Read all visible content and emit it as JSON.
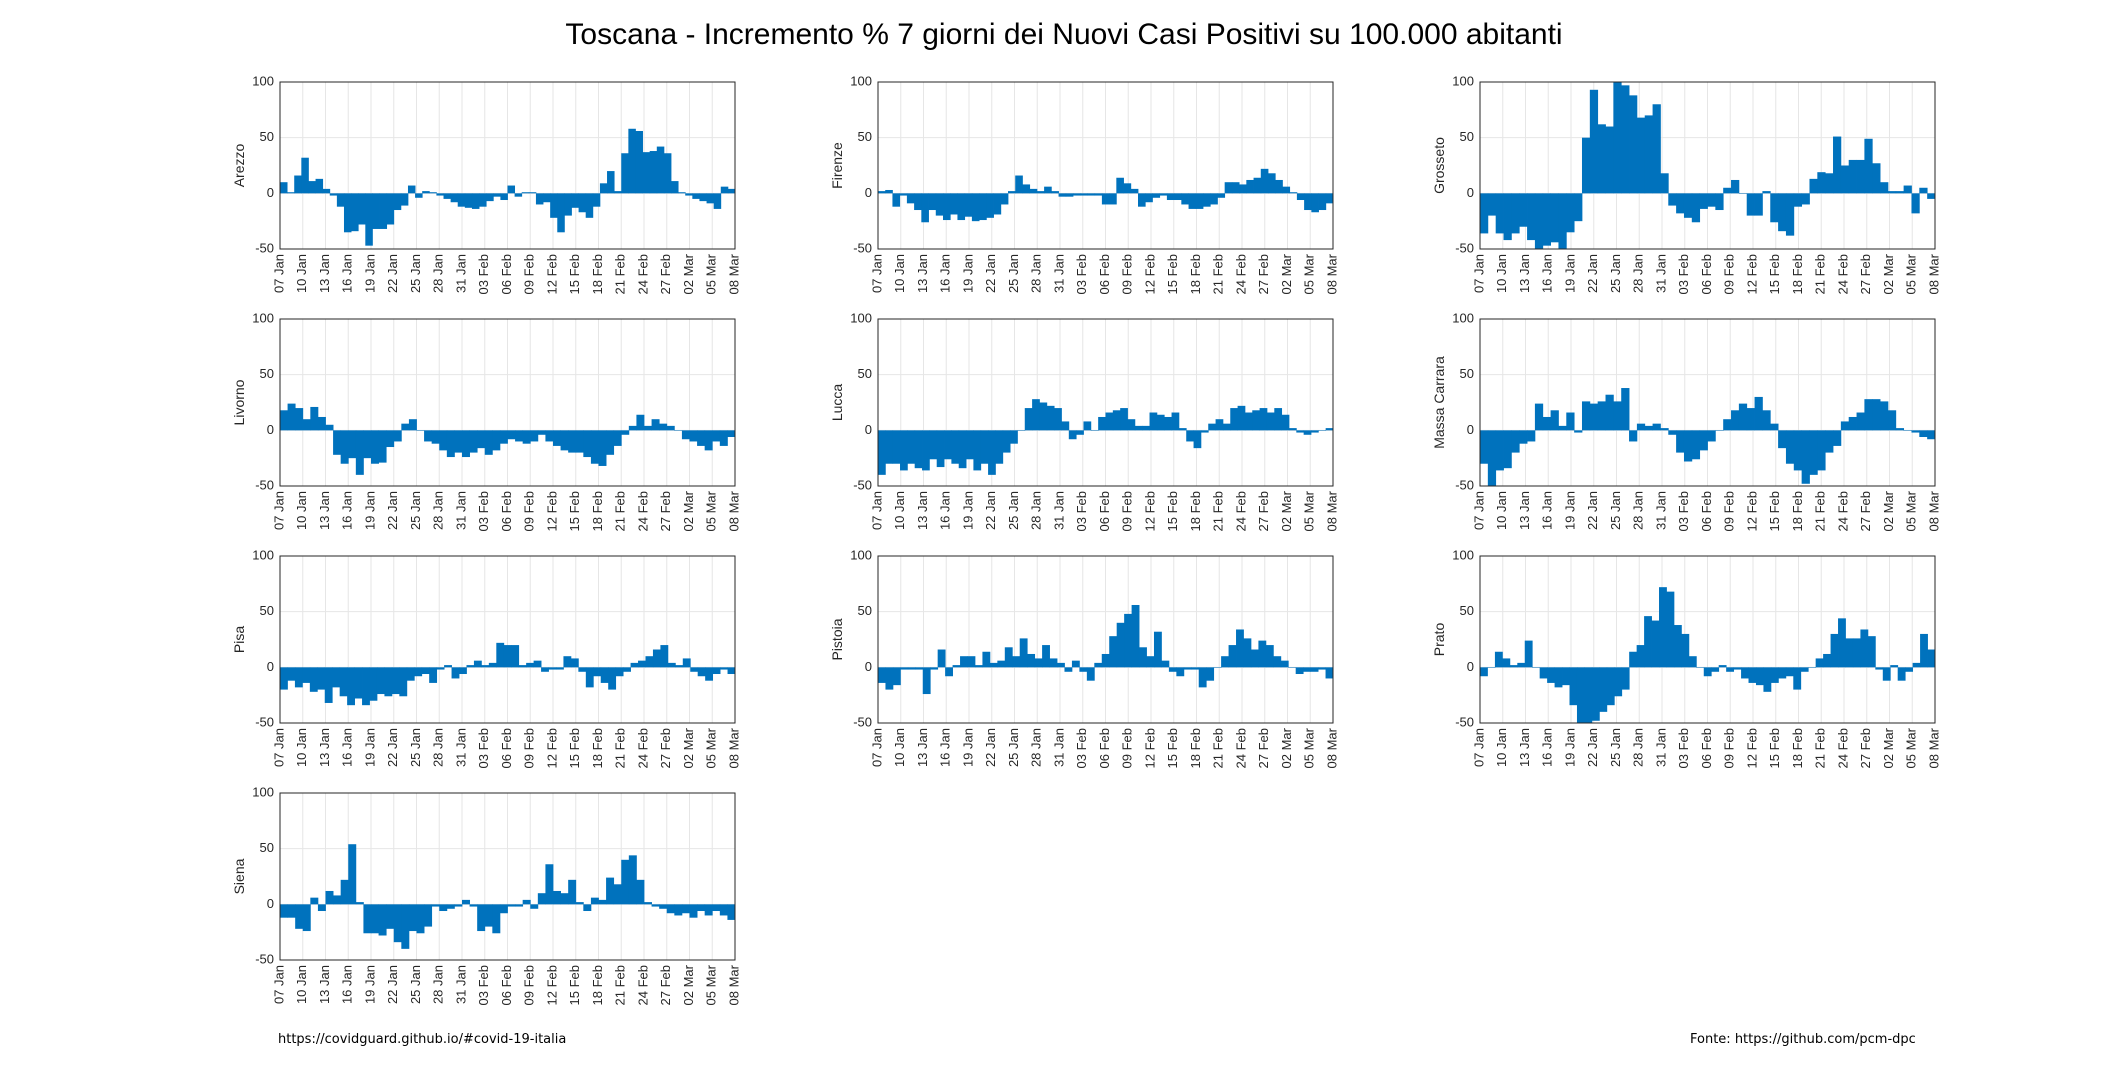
{
  "title": "Toscana - Incremento % 7 giorni dei Nuovi Casi Positivi su 100.000 abitanti",
  "footer": {
    "left": "https://covidguard.github.io/#covid-19-italia",
    "right": "Fonte: https://github.com/pcm-dpc"
  },
  "colors": {
    "bar": "#0072BD",
    "grid": "#e6e6e6",
    "axis": "#262626"
  },
  "chart_data": [
    {
      "type": "bar",
      "ylabel": "Arezzo",
      "ylim": [
        -50,
        100
      ],
      "yticks": [
        -50,
        0,
        50,
        100
      ],
      "xticks": [
        "07 Jan",
        "10 Jan",
        "13 Jan",
        "16 Jan",
        "19 Jan",
        "22 Jan",
        "25 Jan",
        "28 Jan",
        "31 Jan",
        "03 Feb",
        "06 Feb",
        "09 Feb",
        "12 Feb",
        "15 Feb",
        "18 Feb",
        "21 Feb",
        "24 Feb",
        "27 Feb",
        "02 Mar",
        "05 Mar",
        "08 Mar"
      ],
      "values": [
        10,
        1,
        16,
        32,
        11,
        13,
        4,
        -2,
        -12,
        -35,
        -34,
        -28,
        -47,
        -32,
        -32,
        -28,
        -15,
        -11,
        7,
        -4,
        2,
        1,
        -2,
        -5,
        -8,
        -12,
        -13,
        -14,
        -12,
        -7,
        -3,
        -6,
        7,
        -3,
        1,
        1,
        -10,
        -8,
        -22,
        -35,
        -20,
        -13,
        -17,
        -22,
        -12,
        9,
        20,
        2,
        36,
        58,
        56,
        37,
        38,
        42,
        36,
        11,
        1,
        -2,
        -5,
        -7,
        -9,
        -14,
        6,
        4
      ]
    },
    {
      "type": "bar",
      "ylabel": "Firenze",
      "ylim": [
        -50,
        100
      ],
      "yticks": [
        -50,
        0,
        50,
        100
      ],
      "xticks": [
        "07 Jan",
        "10 Jan",
        "13 Jan",
        "16 Jan",
        "19 Jan",
        "22 Jan",
        "25 Jan",
        "28 Jan",
        "31 Jan",
        "03 Feb",
        "06 Feb",
        "09 Feb",
        "12 Feb",
        "15 Feb",
        "18 Feb",
        "21 Feb",
        "24 Feb",
        "27 Feb",
        "02 Mar",
        "05 Mar",
        "08 Mar"
      ],
      "values": [
        2,
        3,
        -12,
        -2,
        -9,
        -15,
        -26,
        -15,
        -20,
        -24,
        -19,
        -24,
        -21,
        -25,
        -24,
        -22,
        -19,
        -10,
        2,
        16,
        8,
        4,
        2,
        6,
        2,
        -3,
        -3,
        -2,
        -2,
        -2,
        -2,
        -10,
        -10,
        14,
        9,
        4,
        -12,
        -8,
        -4,
        -2,
        -6,
        -6,
        -10,
        -14,
        -14,
        -12,
        -10,
        -4,
        10,
        10,
        8,
        12,
        14,
        22,
        18,
        12,
        6,
        1,
        -6,
        -15,
        -17,
        -15,
        -9
      ]
    },
    {
      "type": "bar",
      "ylabel": "Grosseto",
      "ylim": [
        -50,
        100
      ],
      "yticks": [
        -50,
        0,
        50,
        100
      ],
      "xticks": [
        "07 Jan",
        "10 Jan",
        "13 Jan",
        "16 Jan",
        "19 Jan",
        "22 Jan",
        "25 Jan",
        "28 Jan",
        "31 Jan",
        "03 Feb",
        "06 Feb",
        "09 Feb",
        "12 Feb",
        "15 Feb",
        "18 Feb",
        "21 Feb",
        "24 Feb",
        "27 Feb",
        "02 Mar",
        "05 Mar",
        "08 Mar"
      ],
      "values": [
        -36,
        -20,
        -36,
        -42,
        -36,
        -30,
        -42,
        -52,
        -47,
        -44,
        -52,
        -35,
        -25,
        50,
        93,
        62,
        60,
        100,
        97,
        88,
        68,
        70,
        80,
        18,
        -11,
        -18,
        -22,
        -26,
        -14,
        -12,
        -15,
        5,
        12,
        0,
        -20,
        -20,
        2,
        -26,
        -34,
        -38,
        -12,
        -10,
        13,
        19,
        18,
        51,
        25,
        30,
        30,
        49,
        27,
        10,
        2,
        2,
        7,
        -18,
        5,
        -5
      ]
    },
    {
      "type": "bar",
      "ylabel": "Livorno",
      "ylim": [
        -50,
        100
      ],
      "yticks": [
        -50,
        0,
        50,
        100
      ],
      "xticks": [
        "07 Jan",
        "10 Jan",
        "13 Jan",
        "16 Jan",
        "19 Jan",
        "22 Jan",
        "25 Jan",
        "28 Jan",
        "31 Jan",
        "03 Feb",
        "06 Feb",
        "09 Feb",
        "12 Feb",
        "15 Feb",
        "18 Feb",
        "21 Feb",
        "24 Feb",
        "27 Feb",
        "02 Mar",
        "05 Mar",
        "08 Mar"
      ],
      "values": [
        18,
        24,
        20,
        10,
        21,
        12,
        5,
        -22,
        -30,
        -25,
        -40,
        -25,
        -30,
        -29,
        -15,
        -10,
        6,
        10,
        0,
        -10,
        -12,
        -18,
        -24,
        -20,
        -24,
        -20,
        -16,
        -22,
        -18,
        -12,
        -8,
        -10,
        -12,
        -10,
        -4,
        -10,
        -14,
        -18,
        -20,
        -20,
        -24,
        -30,
        -32,
        -22,
        -14,
        -4,
        4,
        14,
        4,
        10,
        6,
        4,
        0,
        -8,
        -10,
        -14,
        -18,
        -10,
        -14,
        -6
      ]
    },
    {
      "type": "bar",
      "ylabel": "Lucca",
      "ylim": [
        -50,
        100
      ],
      "yticks": [
        -50,
        0,
        50,
        100
      ],
      "xticks": [
        "07 Jan",
        "10 Jan",
        "13 Jan",
        "16 Jan",
        "19 Jan",
        "22 Jan",
        "25 Jan",
        "28 Jan",
        "31 Jan",
        "03 Feb",
        "06 Feb",
        "09 Feb",
        "12 Feb",
        "15 Feb",
        "18 Feb",
        "21 Feb",
        "24 Feb",
        "27 Feb",
        "02 Mar",
        "05 Mar",
        "08 Mar"
      ],
      "values": [
        -40,
        -30,
        -30,
        -36,
        -30,
        -34,
        -36,
        -26,
        -33,
        -26,
        -30,
        -34,
        -26,
        -36,
        -30,
        -40,
        -30,
        -20,
        -12,
        0,
        20,
        28,
        25,
        22,
        20,
        8,
        -8,
        -4,
        8,
        0,
        12,
        16,
        18,
        20,
        10,
        4,
        4,
        16,
        14,
        12,
        16,
        2,
        -10,
        -16,
        -2,
        6,
        10,
        6,
        20,
        22,
        16,
        18,
        20,
        16,
        20,
        14,
        2,
        -2,
        -4,
        -2,
        0,
        2
      ]
    },
    {
      "type": "bar",
      "ylabel": "Massa Carrara",
      "ylim": [
        -50,
        100
      ],
      "yticks": [
        -50,
        0,
        50,
        100
      ],
      "xticks": [
        "07 Jan",
        "10 Jan",
        "13 Jan",
        "16 Jan",
        "19 Jan",
        "22 Jan",
        "25 Jan",
        "28 Jan",
        "31 Jan",
        "03 Feb",
        "06 Feb",
        "09 Feb",
        "12 Feb",
        "15 Feb",
        "18 Feb",
        "21 Feb",
        "24 Feb",
        "27 Feb",
        "02 Mar",
        "05 Mar",
        "08 Mar"
      ],
      "values": [
        -30,
        -50,
        -36,
        -34,
        -20,
        -12,
        -10,
        24,
        12,
        18,
        4,
        16,
        -2,
        26,
        24,
        26,
        32,
        26,
        38,
        -10,
        6,
        4,
        6,
        2,
        -4,
        -20,
        -28,
        -26,
        -18,
        -10,
        0,
        10,
        18,
        24,
        20,
        30,
        18,
        6,
        -16,
        -30,
        -36,
        -48,
        -40,
        -36,
        -20,
        -14,
        8,
        12,
        16,
        28,
        28,
        26,
        18,
        2,
        0,
        -2,
        -6,
        -8
      ]
    },
    {
      "type": "bar",
      "ylabel": "Pisa",
      "ylim": [
        -50,
        100
      ],
      "yticks": [
        -50,
        0,
        50,
        100
      ],
      "xticks": [
        "07 Jan",
        "10 Jan",
        "13 Jan",
        "16 Jan",
        "19 Jan",
        "22 Jan",
        "25 Jan",
        "28 Jan",
        "31 Jan",
        "03 Feb",
        "06 Feb",
        "09 Feb",
        "12 Feb",
        "15 Feb",
        "18 Feb",
        "21 Feb",
        "24 Feb",
        "27 Feb",
        "02 Mar",
        "05 Mar",
        "08 Mar"
      ],
      "values": [
        -20,
        -12,
        -18,
        -14,
        -22,
        -20,
        -32,
        -18,
        -26,
        -34,
        -28,
        -34,
        -30,
        -24,
        -26,
        -24,
        -26,
        -12,
        -8,
        -6,
        -14,
        -2,
        2,
        -10,
        -6,
        2,
        6,
        2,
        4,
        22,
        20,
        20,
        2,
        4,
        6,
        -4,
        -2,
        -2,
        10,
        8,
        -4,
        -18,
        -8,
        -14,
        -20,
        -8,
        -4,
        4,
        6,
        10,
        16,
        20,
        4,
        2,
        8,
        -4,
        -8,
        -12,
        -6,
        -2,
        -6
      ]
    },
    {
      "type": "bar",
      "ylabel": "Pistoia",
      "ylim": [
        -50,
        100
      ],
      "yticks": [
        -50,
        0,
        50,
        100
      ],
      "xticks": [
        "07 Jan",
        "10 Jan",
        "13 Jan",
        "16 Jan",
        "19 Jan",
        "22 Jan",
        "25 Jan",
        "28 Jan",
        "31 Jan",
        "03 Feb",
        "06 Feb",
        "09 Feb",
        "12 Feb",
        "15 Feb",
        "18 Feb",
        "21 Feb",
        "24 Feb",
        "27 Feb",
        "02 Mar",
        "05 Mar",
        "08 Mar"
      ],
      "values": [
        -14,
        -20,
        -16,
        -2,
        -2,
        -2,
        -24,
        -2,
        16,
        -8,
        2,
        10,
        10,
        2,
        14,
        4,
        6,
        18,
        10,
        26,
        12,
        8,
        20,
        8,
        4,
        -4,
        6,
        -4,
        -12,
        4,
        12,
        28,
        40,
        48,
        56,
        18,
        10,
        32,
        6,
        -4,
        -8,
        -2,
        -2,
        -18,
        -12,
        0,
        10,
        20,
        34,
        26,
        16,
        24,
        20,
        10,
        6,
        0,
        -6,
        -4,
        -4,
        -2,
        -10
      ]
    },
    {
      "type": "bar",
      "ylabel": "Prato",
      "ylim": [
        -50,
        100
      ],
      "yticks": [
        -50,
        0,
        50,
        100
      ],
      "xticks": [
        "07 Jan",
        "10 Jan",
        "13 Jan",
        "16 Jan",
        "19 Jan",
        "22 Jan",
        "25 Jan",
        "28 Jan",
        "31 Jan",
        "03 Feb",
        "06 Feb",
        "09 Feb",
        "12 Feb",
        "15 Feb",
        "18 Feb",
        "21 Feb",
        "24 Feb",
        "27 Feb",
        "02 Mar",
        "05 Mar",
        "08 Mar"
      ],
      "values": [
        -8,
        0,
        14,
        8,
        2,
        4,
        24,
        0,
        -10,
        -14,
        -18,
        -16,
        -34,
        -50,
        -50,
        -48,
        -40,
        -34,
        -26,
        -20,
        14,
        20,
        46,
        42,
        72,
        68,
        38,
        30,
        10,
        0,
        -8,
        -4,
        2,
        -4,
        -2,
        -10,
        -14,
        -16,
        -22,
        -14,
        -10,
        -8,
        -20,
        -4,
        0,
        8,
        12,
        30,
        44,
        26,
        26,
        34,
        28,
        -2,
        -12,
        2,
        -12,
        -4,
        4,
        30,
        16
      ]
    },
    {
      "type": "bar",
      "ylabel": "Siena",
      "ylim": [
        -50,
        100
      ],
      "yticks": [
        -50,
        0,
        50,
        100
      ],
      "xticks": [
        "07 Jan",
        "10 Jan",
        "13 Jan",
        "16 Jan",
        "19 Jan",
        "22 Jan",
        "25 Jan",
        "28 Jan",
        "31 Jan",
        "03 Feb",
        "06 Feb",
        "09 Feb",
        "12 Feb",
        "15 Feb",
        "18 Feb",
        "21 Feb",
        "24 Feb",
        "27 Feb",
        "02 Mar",
        "05 Mar",
        "08 Mar"
      ],
      "values": [
        -12,
        -12,
        -22,
        -24,
        6,
        -6,
        12,
        8,
        22,
        54,
        2,
        -26,
        -26,
        -28,
        -22,
        -34,
        -40,
        -24,
        -26,
        -20,
        -2,
        -6,
        -4,
        -2,
        4,
        -2,
        -24,
        -20,
        -26,
        -8,
        -2,
        -2,
        4,
        -4,
        10,
        36,
        12,
        10,
        22,
        2,
        -6,
        6,
        4,
        24,
        18,
        40,
        44,
        22,
        2,
        -2,
        -4,
        -8,
        -10,
        -8,
        -12,
        -6,
        -10,
        -6,
        -10,
        -14
      ]
    }
  ]
}
